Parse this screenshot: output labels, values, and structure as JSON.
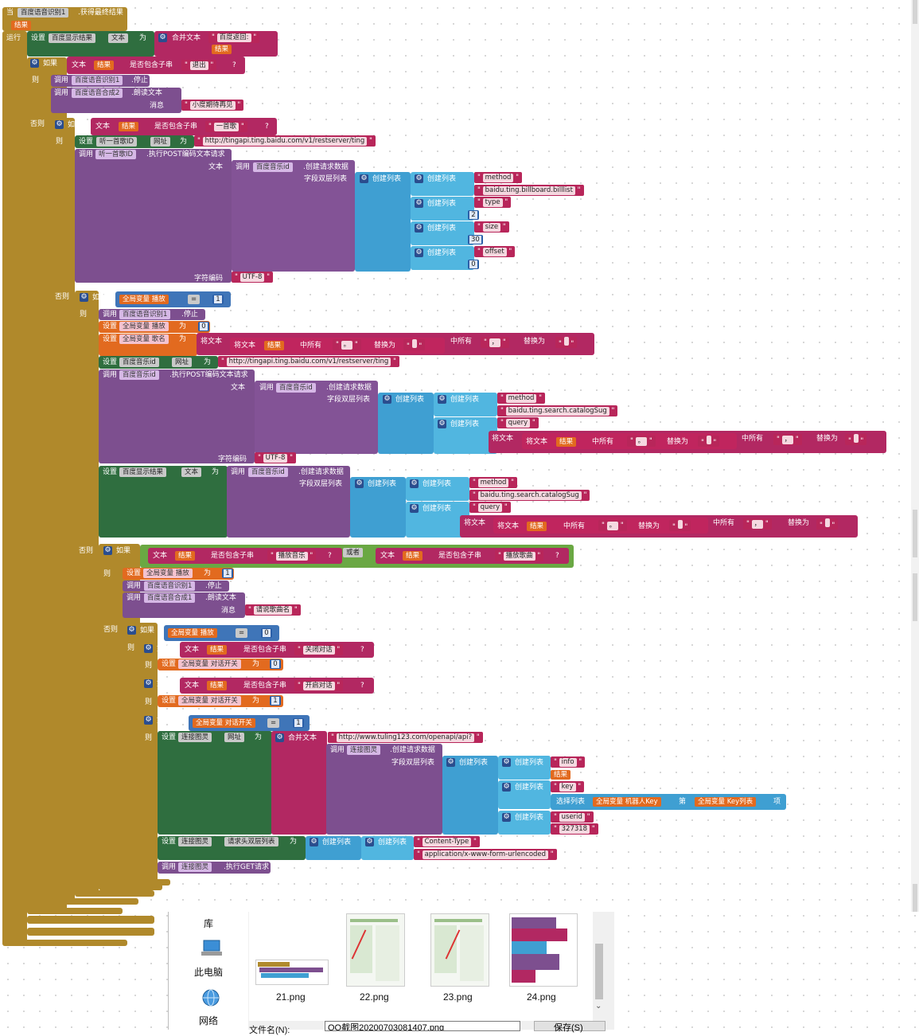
{
  "event": {
    "when": "当",
    "component": "百度语音识别1",
    "event_name": ".获得最终结果",
    "param": "结果",
    "do": "运行"
  },
  "labels": {
    "set": "设置",
    "to": "为",
    "if": "如果",
    "then": "则",
    "else": "否则",
    "call": "调用",
    "text": "文本",
    "contains": "是否包含子串",
    "join": "合并文本",
    "make_list": "创建列表",
    "or": "或者",
    "charset": "字符编码",
    "message": "消息",
    "pair_list": "字段双层列表",
    "replace_text": "将文本",
    "all_occurrences": "中所有",
    "replace_with": "替换为",
    "global": "全局变量",
    "select_list": "选择列表",
    "index_of": "第",
    "item": "项",
    "equals": "="
  },
  "blocks": {
    "b1": {
      "component": "百度显示结果",
      "property": "文本",
      "join_a": "百度返回:",
      "join_b": "结果"
    },
    "b2": {
      "needle": "退出"
    },
    "b3": {
      "stop": "百度语音识别1",
      "stop_method": ".停止",
      "speak": "百度语音合成2",
      "speak_method": ".朗读文本",
      "msg": "小度期待再见"
    },
    "b4": {
      "needle": "一首歌"
    },
    "b5": {
      "component": "听一首歌ID",
      "property": "网址",
      "url": "http://tingapi.ting.baidu.com/v1/restserver/ting"
    },
    "b6": {
      "component": "听一首歌ID",
      "method": ".执行POST编码文本请求",
      "music": "百度音乐id",
      "build": ".创建请求数据",
      "pairs": [
        [
          "method",
          "baidu.ting.billboard.billlist"
        ],
        [
          "type",
          "2"
        ],
        [
          "size",
          "30"
        ],
        [
          "offset",
          "0"
        ]
      ],
      "charset": "UTF-8"
    },
    "b7": {
      "var": "播放",
      "val": "1"
    },
    "b8": {
      "stop": "百度语音识别1",
      "stop_method": ".停止",
      "var_play": "播放",
      "play_val": "0",
      "var_song": "歌名",
      "r1a": "结果",
      "r1b": "。",
      "r1c": "",
      "r2b": "，",
      "r2c": ""
    },
    "b9": {
      "component": "百度音乐id",
      "property": "网址",
      "url": "http://tingapi.ting.baidu.com/v1/restserver/ting"
    },
    "b10": {
      "component": "百度音乐id",
      "method": ".执行POST编码文本请求",
      "music": "百度音乐id",
      "build": ".创建请求数据",
      "pairs": [
        [
          "method",
          "baidu.ting.search.catalogSug"
        ],
        [
          "query",
          ""
        ]
      ],
      "q_a": "结果",
      "q_b": "。",
      "q_c": "",
      "q_d": "，",
      "q_e": "",
      "charset": "UTF-8"
    },
    "b11": {
      "component": "百度显示结果",
      "property": "文本",
      "music": "百度音乐id",
      "build": ".创建请求数据",
      "pairs": [
        [
          "method",
          "baidu.ting.search.catalogSug"
        ],
        [
          "query",
          ""
        ]
      ],
      "q_a": "结果",
      "q_b": "。",
      "q_c": "",
      "q_d": "，",
      "q_e": ""
    },
    "b12": {
      "a_var": "结果",
      "a_needle": "播放音乐",
      "b_var": "结果",
      "b_needle": "播放歌曲"
    },
    "b13": {
      "var_play": "播放",
      "play_val": "1",
      "stop": "百度语音识别1",
      "stop_method": ".停止",
      "speak": "百度语音合成1",
      "speak_method": ".朗读文本",
      "msg": "请说歌曲名"
    },
    "b14": {
      "var": "播放",
      "val": "0"
    },
    "b15": {
      "needle": "关闭对话",
      "var": "对话开关",
      "val": "0"
    },
    "b16": {
      "needle": "开启对话",
      "var": "对话开关",
      "val": "1"
    },
    "b17": {
      "var": "对话开关",
      "val": "1"
    },
    "b18": {
      "component": "连接图灵",
      "property": "网址",
      "url": "http://www.tuling123.com/openapi/api?",
      "build": ".创建请求数据",
      "k1": "info",
      "v1": "结果",
      "k2": "key",
      "key_var": "机器人Key",
      "list_var": "Key列表",
      "k3": "userid",
      "v3": "327318"
    },
    "b19": {
      "component": "连接图灵",
      "property": "请求头双层列表",
      "h_key": "Content-Type",
      "h_val": "application/x-www-form-urlencoded"
    },
    "b20": {
      "component": "连接图灵",
      "method": ".执行GET请求"
    }
  },
  "dialog": {
    "side_items": [
      "库",
      "此电脑",
      "网络"
    ],
    "files": [
      "21.png",
      "22.png",
      "23.png",
      "24.png"
    ],
    "filename_label": "文件名(N):",
    "filename_value": "QQ截图20200703081407.png",
    "save_button": "保存(S)"
  },
  "colors": {
    "event": "#b0892b",
    "set_component": "#2f6e3f",
    "call": "#7d4f8f",
    "text": "#b22862",
    "list": "#3f9fd2",
    "logic": "#6aa843",
    "variable": "#e26a1f",
    "math": "#2b5fa8"
  }
}
